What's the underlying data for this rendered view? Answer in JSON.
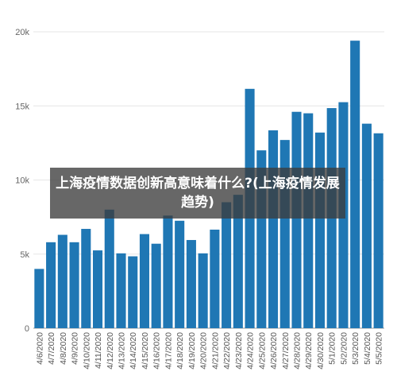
{
  "chart_data": {
    "type": "bar",
    "title": "",
    "xlabel": "",
    "ylabel": "",
    "ylim": [
      0,
      20000
    ],
    "grid": true,
    "bar_color": "#1f77b4",
    "yticks": [
      {
        "value": 0,
        "label": "0"
      },
      {
        "value": 5000,
        "label": "5k"
      },
      {
        "value": 10000,
        "label": "10k"
      },
      {
        "value": 15000,
        "label": "15k"
      },
      {
        "value": 20000,
        "label": "20k"
      }
    ],
    "categories": [
      "4/6/2020",
      "4/7/2020",
      "4/8/2020",
      "4/9/2020",
      "4/10/2020",
      "4/11/2020",
      "4/12/2020",
      "4/13/2020",
      "4/14/2020",
      "4/15/2020",
      "4/16/2020",
      "4/17/2020",
      "4/18/2020",
      "4/19/2020",
      "4/20/2020",
      "4/21/2020",
      "4/22/2020",
      "4/23/2020",
      "4/24/2020",
      "4/25/2020",
      "4/26/2020",
      "4/27/2020",
      "4/28/2020",
      "4/29/2020",
      "4/30/2020",
      "5/1/2020",
      "5/2/2020",
      "5/3/2020",
      "5/4/2020",
      "5/5/2020"
    ],
    "values": [
      4000,
      5800,
      6300,
      5800,
      6700,
      5250,
      8000,
      5050,
      4850,
      6350,
      5700,
      7600,
      7250,
      5950,
      5050,
      6650,
      8500,
      9000,
      16150,
      12000,
      13350,
      12700,
      14600,
      14500,
      13200,
      14850,
      15250,
      19400,
      13800,
      13150
    ]
  },
  "overlay": {
    "text": "上海疫情数据创新高意味着什么?(上海疫情发展趋势)"
  }
}
